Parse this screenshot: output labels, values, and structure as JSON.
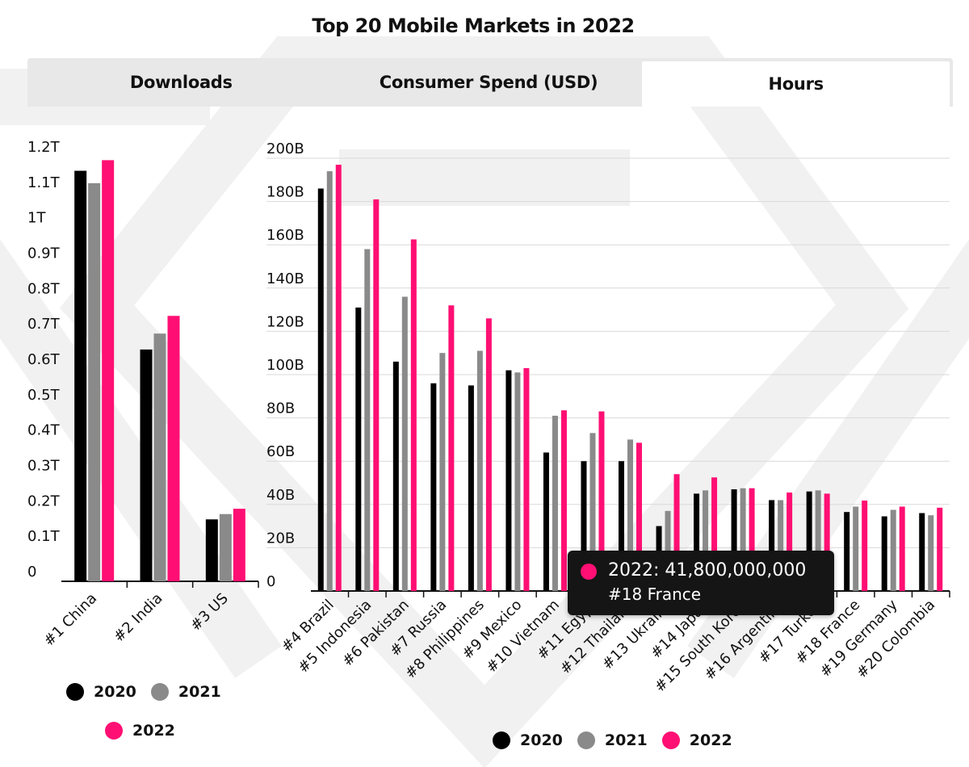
{
  "title": "Top 20 Mobile Markets in 2022",
  "tabs": [
    {
      "label": "Downloads",
      "active": false
    },
    {
      "label": "Consumer Spend (USD)",
      "active": false
    },
    {
      "label": "Hours",
      "active": true
    }
  ],
  "colors": {
    "y2020": "#000000",
    "y2021": "#8a8a8a",
    "y2022": "#ff0f73"
  },
  "chart_data": [
    {
      "type": "bar",
      "categories": [
        "#1 China",
        "#2 India",
        "#3 US"
      ],
      "series": [
        {
          "name": "2020",
          "values": [
            1160000000000,
            655000000000,
            175000000000
          ]
        },
        {
          "name": "2021",
          "values": [
            1125000000000,
            700000000000,
            190000000000
          ]
        },
        {
          "name": "2022",
          "values": [
            1190000000000,
            750000000000,
            205000000000
          ]
        }
      ],
      "yticks": [
        "0",
        "0.1T",
        "0.2T",
        "0.3T",
        "0.4T",
        "0.5T",
        "0.6T",
        "0.7T",
        "0.8T",
        "0.9T",
        "1T",
        "1.1T",
        "1.2T"
      ],
      "ylim": [
        0,
        1200000000000
      ],
      "grid": false,
      "legend": "bottom"
    },
    {
      "type": "bar",
      "categories": [
        "#4 Brazil",
        "#5 Indonesia",
        "#6 Pakistan",
        "#7 Russia",
        "#8 Philippines",
        "#9 Mexico",
        "#10 Vietnam",
        "#11 Egypt",
        "#12 Thailand",
        "#13 Ukraine",
        "#14 Japan",
        "#15 South Korea",
        "#16 Argentina",
        "#17 Turkey",
        "#18 France",
        "#19 Germany",
        "#20 Colombia"
      ],
      "series": [
        {
          "name": "2020",
          "values": [
            186000000000,
            131000000000,
            106000000000,
            96000000000,
            95000000000,
            102000000000,
            64000000000,
            60000000000,
            60000000000,
            30000000000,
            45000000000,
            47000000000,
            42000000000,
            46000000000,
            36500000000,
            34500000000,
            36000000000
          ]
        },
        {
          "name": "2021",
          "values": [
            194000000000,
            158000000000,
            136000000000,
            110000000000,
            111000000000,
            101000000000,
            81000000000,
            73000000000,
            70000000000,
            37000000000,
            46500000000,
            47500000000,
            42000000000,
            46500000000,
            39000000000,
            37500000000,
            35000000000
          ]
        },
        {
          "name": "2022",
          "values": [
            197000000000,
            181000000000,
            162500000000,
            132000000000,
            126000000000,
            103000000000,
            83500000000,
            83000000000,
            68500000000,
            54000000000,
            52500000000,
            47500000000,
            45500000000,
            45000000000,
            41800000000,
            39000000000,
            38500000000
          ]
        }
      ],
      "yticks": [
        "0",
        "20B",
        "40B",
        "60B",
        "80B",
        "100B",
        "120B",
        "140B",
        "160B",
        "180B",
        "200B"
      ],
      "ylim": [
        0,
        200000000000
      ],
      "grid": true,
      "legend": "bottom"
    }
  ],
  "legend_left": {
    "items": [
      "2020",
      "2021",
      "2022"
    ]
  },
  "legend_right": {
    "items": [
      "2020",
      "2021",
      "2022"
    ]
  },
  "tooltip": {
    "line1": "2022: 41,800,000,000",
    "line2": "#18 France"
  }
}
